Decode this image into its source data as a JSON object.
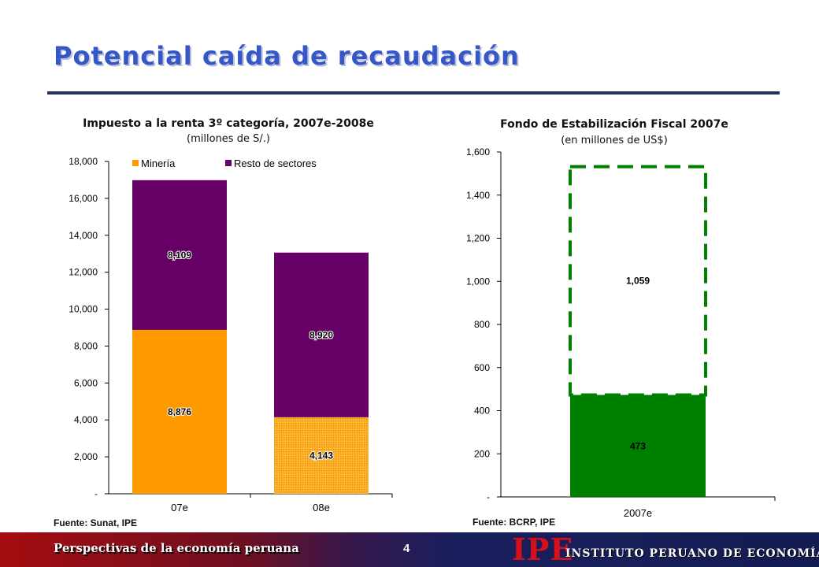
{
  "page": {
    "title": "Potencial caída de recaudación",
    "footer_left": "Perspectivas de la economía peruana",
    "page_number": "4",
    "logo": "IPE",
    "logo_name": "INSTITUTO PERUANO DE ECONOMÍA",
    "colors": {
      "title": "#3657c7",
      "mineria": "#ff9900",
      "resto": "#660066",
      "fondo": "#008000",
      "footer_red": "#a40d10",
      "footer_navy": "#141c52"
    }
  },
  "chart_data": [
    {
      "type": "bar",
      "stacked": true,
      "title": "Impuesto a la renta 3º categoría, 2007e-2008e",
      "subtitle": "(millones de S/.)",
      "source": "Fuente: Sunat, IPE",
      "categories": [
        "07e",
        "08e"
      ],
      "series": [
        {
          "name": "Minería",
          "values": [
            8876,
            4143
          ],
          "labels": [
            "8,876",
            "4,143"
          ]
        },
        {
          "name": "Resto de sectores",
          "values": [
            8109,
            8920
          ],
          "labels": [
            "8,109",
            "8,920"
          ]
        }
      ],
      "ylim": [
        0,
        18000
      ],
      "yticks": [
        0,
        2000,
        4000,
        6000,
        8000,
        10000,
        12000,
        14000,
        16000,
        18000
      ],
      "ytick_labels": [
        "-",
        "2,000",
        "4,000",
        "6,000",
        "8,000",
        "10,000",
        "12,000",
        "14,000",
        "16,000",
        "18,000"
      ],
      "legend": "top",
      "grid": false
    },
    {
      "type": "bar",
      "stacked": true,
      "title": "Fondo de Estabilización Fiscal 2007e",
      "subtitle": "(en millones de US$)",
      "source": "Fuente: BCRP, IPE",
      "categories": [
        "2007e"
      ],
      "series": [
        {
          "values": [
            473
          ],
          "labels": [
            "473"
          ]
        },
        {
          "values": [
            1059
          ],
          "labels": [
            "1,059"
          ]
        }
      ],
      "ylim": [
        0,
        1600
      ],
      "yticks": [
        0,
        200,
        400,
        600,
        800,
        1000,
        1200,
        1400,
        1600
      ],
      "ytick_labels": [
        "-",
        "200",
        "400",
        "600",
        "800",
        "1,000",
        "1,200",
        "1,400",
        "1,600"
      ],
      "legend": "none",
      "grid": false
    }
  ]
}
